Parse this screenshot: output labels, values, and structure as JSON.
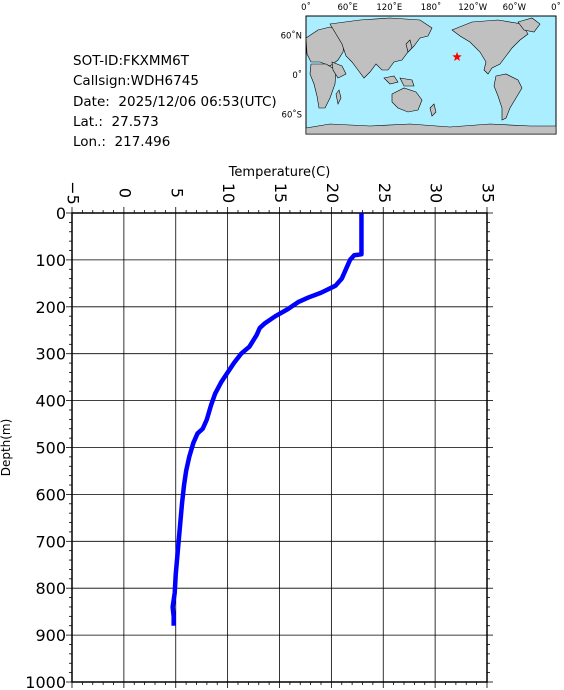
{
  "info": {
    "sot_id": "SOT-ID:FKXMM6T",
    "callsign": "Callsign:WDH6745",
    "date": "Date:  2025/12/06 06:53(UTC)",
    "lat": "Lat.:  27.573",
    "lon": "Lon.:  217.496"
  },
  "map": {
    "top_labels": [
      "0˚",
      "60˚E",
      "120˚E",
      "180˚",
      "120˚W",
      "60˚W",
      "0˚"
    ],
    "side_labels": [
      "60˚N",
      "0˚",
      "60˚S"
    ],
    "ocean_color": "#aaeeff",
    "land_color": "#c0c0c0",
    "marker_color": "#ff0000",
    "marker": {
      "lat": 27.573,
      "lon": 217.496
    }
  },
  "chart_data": {
    "type": "line",
    "xlabel": "Temperature(C)",
    "ylabel": "Depth(m)",
    "xlim": [
      -5,
      35
    ],
    "ylim": [
      0,
      1000
    ],
    "y_inverted": true,
    "x_ticks": [
      -5,
      0,
      5,
      10,
      15,
      20,
      25,
      30,
      35
    ],
    "y_ticks": [
      0,
      100,
      200,
      300,
      400,
      500,
      600,
      700,
      800,
      900,
      1000
    ],
    "x_tick_labels": [
      "−5",
      "0",
      "5",
      "10",
      "15",
      "20",
      "25",
      "30",
      "35"
    ],
    "y_tick_labels": [
      "0",
      "100",
      "200",
      "300",
      "400",
      "500",
      "600",
      "700",
      "800",
      "900",
      "1000"
    ],
    "grid": true,
    "series": [
      {
        "color": "#0000ff",
        "points": [
          [
            22.9,
            0
          ],
          [
            22.9,
            40
          ],
          [
            22.9,
            88
          ],
          [
            22.2,
            90
          ],
          [
            21.8,
            100
          ],
          [
            21.6,
            110
          ],
          [
            21.0,
            140
          ],
          [
            20.4,
            155
          ],
          [
            19.0,
            170
          ],
          [
            17.8,
            180
          ],
          [
            16.8,
            190
          ],
          [
            15.8,
            205
          ],
          [
            14.6,
            220
          ],
          [
            13.6,
            235
          ],
          [
            13.1,
            245
          ],
          [
            12.8,
            260
          ],
          [
            12.1,
            285
          ],
          [
            11.3,
            300
          ],
          [
            10.6,
            320
          ],
          [
            10.0,
            340
          ],
          [
            9.4,
            360
          ],
          [
            8.8,
            385
          ],
          [
            8.4,
            410
          ],
          [
            8.0,
            440
          ],
          [
            7.6,
            460
          ],
          [
            7.1,
            470
          ],
          [
            6.7,
            490
          ],
          [
            6.3,
            520
          ],
          [
            6.0,
            550
          ],
          [
            5.8,
            580
          ],
          [
            5.6,
            620
          ],
          [
            5.4,
            670
          ],
          [
            5.2,
            720
          ],
          [
            5.0,
            770
          ],
          [
            4.9,
            810
          ],
          [
            4.7,
            840
          ],
          [
            4.8,
            860
          ],
          [
            4.8,
            880
          ]
        ]
      }
    ]
  }
}
